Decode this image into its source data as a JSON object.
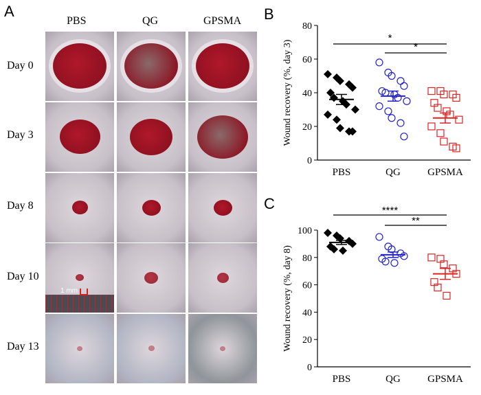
{
  "panels": {
    "a": "A",
    "b": "B",
    "c": "C"
  },
  "photo_grid": {
    "columns": [
      "PBS",
      "QG",
      "GPSMA"
    ],
    "rows": [
      "Day 0",
      "Day 3",
      "Day 8",
      "Day 10",
      "Day 13"
    ],
    "scale_label": "1 mm",
    "wound_size": [
      [
        1.0,
        1.0,
        1.0
      ],
      [
        0.75,
        0.8,
        0.95
      ],
      [
        0.3,
        0.35,
        0.35
      ],
      [
        0.15,
        0.25,
        0.22
      ],
      [
        0.1,
        0.12,
        0.1
      ]
    ],
    "skin_color": "#c8c0c8",
    "wound_color": "#b0182a"
  },
  "chart_data": [
    {
      "type": "scatter",
      "panel": "B",
      "ylabel": "Wound recovery (%, day 3)",
      "ylim": [
        0,
        80
      ],
      "yticks": [
        0,
        20,
        40,
        60,
        80
      ],
      "categories": [
        "PBS",
        "QG",
        "GPSMA"
      ],
      "series": [
        {
          "category": "PBS",
          "color": "#000000",
          "marker": "diamond-filled",
          "values": [
            51,
            49,
            47,
            45,
            43,
            40,
            37,
            35,
            33,
            30,
            27,
            24,
            19,
            17,
            17
          ],
          "mean": 36,
          "sem": 3
        },
        {
          "category": "QG",
          "color": "#2222cc",
          "marker": "circle-open",
          "values": [
            58,
            52,
            50,
            47,
            44,
            41,
            40,
            39,
            37,
            35,
            32,
            29,
            25,
            22,
            14
          ],
          "mean": 38,
          "sem": 3
        },
        {
          "category": "GPSMA",
          "color": "#dd2222",
          "marker": "square-open",
          "values": [
            41,
            41,
            39,
            39,
            37,
            34,
            31,
            29,
            27,
            24,
            20,
            16,
            11,
            8,
            7
          ],
          "mean": 25,
          "sem": 3
        }
      ],
      "significance": [
        {
          "from": "PBS",
          "to": "GPSMA",
          "label": "*"
        },
        {
          "from": "QG",
          "to": "GPSMA",
          "label": "*"
        }
      ]
    },
    {
      "type": "scatter",
      "panel": "C",
      "ylabel": "Wound recovery (%, day 8)",
      "ylim": [
        0,
        100
      ],
      "yticks": [
        0,
        20,
        40,
        60,
        80,
        100
      ],
      "categories": [
        "PBS",
        "QG",
        "GPSMA"
      ],
      "series": [
        {
          "category": "PBS",
          "color": "#000000",
          "marker": "diamond-filled",
          "values": [
            98,
            96,
            94,
            92,
            90,
            88,
            86,
            85
          ],
          "mean": 91,
          "sem": 1.5
        },
        {
          "category": "QG",
          "color": "#2222cc",
          "marker": "circle-open",
          "values": [
            95,
            88,
            86,
            83,
            81,
            79,
            77,
            76
          ],
          "mean": 82,
          "sem": 2
        },
        {
          "category": "GPSMA",
          "color": "#dd2222",
          "marker": "square-open",
          "values": [
            80,
            79,
            75,
            72,
            68,
            62,
            58,
            52
          ],
          "mean": 68,
          "sem": 4
        }
      ],
      "significance": [
        {
          "from": "PBS",
          "to": "GPSMA",
          "label": "****"
        },
        {
          "from": "QG",
          "to": "GPSMA",
          "label": "**"
        }
      ]
    }
  ]
}
